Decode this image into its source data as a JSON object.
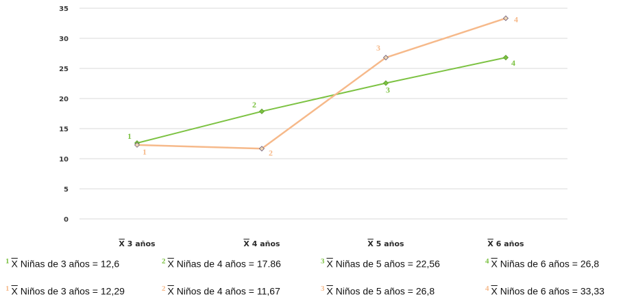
{
  "chart_data": {
    "type": "line",
    "y_ticks": [
      "35",
      "30",
      "25",
      "20",
      "15",
      "10",
      "5",
      "0"
    ],
    "ylim": [
      0,
      35
    ],
    "grid": true,
    "categories": [
      {
        "symbol": "X",
        "label": "3 años"
      },
      {
        "symbol": "X",
        "label": "4 años"
      },
      {
        "symbol": "X",
        "label": "5 años"
      },
      {
        "symbol": "X",
        "label": "6 años"
      }
    ],
    "series": [
      {
        "key": "ninas",
        "color": "#7cc242",
        "values": [
          12.6,
          17.86,
          22.56,
          26.8
        ],
        "point_labels": [
          "1",
          "2",
          "3",
          "4"
        ]
      },
      {
        "key": "ninos",
        "color": "#f6b98a",
        "values": [
          12.29,
          11.67,
          26.8,
          33.33
        ],
        "point_labels": [
          "1",
          "2",
          "3",
          "4"
        ]
      }
    ]
  },
  "legend": {
    "ninas": [
      {
        "num": "1",
        "symbol": "X",
        "text": "Niñas de 3 años = 12,6"
      },
      {
        "num": "2",
        "symbol": "X",
        "text": "Niñas de 4 años = 17.86"
      },
      {
        "num": "3",
        "symbol": "X",
        "text": "Niñas de 5 años = 22,56"
      },
      {
        "num": "4",
        "symbol": "X",
        "text": "Niñas de 6 años = 26,8"
      }
    ],
    "ninos": [
      {
        "num": "1",
        "symbol": "X",
        "text": "Niños de 3 años = 12,29"
      },
      {
        "num": "2",
        "symbol": "X",
        "text": "Niños de 4 años = 11,67"
      },
      {
        "num": "3",
        "symbol": "X",
        "text": "Niños de 5 años = 26,8"
      },
      {
        "num": "4",
        "symbol": "X",
        "text": "Niños de 6 años = 33,33"
      }
    ]
  }
}
